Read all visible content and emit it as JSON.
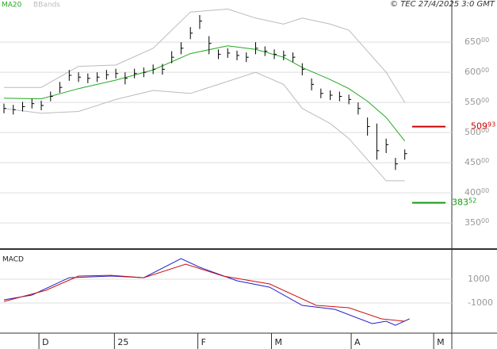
{
  "header": "© TEC 27/4/2025 3:0 GMT",
  "chart_data": [
    {
      "type": "hlc",
      "xlim": [
        -0.85,
        96.09
      ],
      "ylim": [
        308,
        720
      ],
      "xticks": [
        {
          "value": 7.5,
          "label": "D"
        },
        {
          "value": 23.7,
          "label": "25"
        },
        {
          "value": 41.6,
          "label": "F"
        },
        {
          "value": 57.4,
          "label": "M"
        },
        {
          "value": 74.5,
          "label": "A"
        },
        {
          "value": 92.2,
          "label": "M"
        }
      ],
      "yticks": [
        {
          "value": 350,
          "label": "350",
          "decimals": "00"
        },
        {
          "value": 400,
          "label": "400",
          "decimals": "00"
        },
        {
          "value": 450,
          "label": "450",
          "decimals": "00"
        },
        {
          "value": 500,
          "label": "500",
          "decimals": "00"
        },
        {
          "value": 550,
          "label": "550",
          "decimals": "00"
        },
        {
          "value": 600,
          "label": "600",
          "decimals": "00"
        },
        {
          "value": 650,
          "label": "650",
          "decimals": "00"
        }
      ],
      "grid": true,
      "bars": {
        "color": "#000000",
        "x": [
          0,
          2,
          4,
          6,
          8,
          10,
          12,
          14,
          16,
          18,
          20,
          22,
          24,
          26,
          28,
          30,
          32,
          34,
          36,
          38,
          40,
          42,
          44,
          46,
          48,
          50,
          52,
          54,
          56,
          58,
          60,
          62,
          64,
          66,
          68,
          70,
          72,
          74,
          76,
          78,
          80,
          82,
          84,
          86
        ],
        "high": [
          548,
          546,
          551,
          556,
          553,
          568,
          584,
          604,
          600,
          598,
          600,
          604,
          606,
          600,
          606,
          608,
          613,
          614,
          635,
          650,
          675,
          695,
          660,
          638,
          640,
          636,
          633,
          650,
          643,
          638,
          636,
          633,
          615,
          590,
          573,
          570,
          568,
          563,
          550,
          525,
          515,
          490,
          458,
          472
        ],
        "low": [
          532,
          530,
          535,
          540,
          537,
          552,
          566,
          586,
          584,
          582,
          584,
          588,
          590,
          580,
          590,
          592,
          597,
          596,
          615,
          630,
          655,
          672,
          630,
          622,
          624,
          620,
          617,
          630,
          627,
          622,
          620,
          617,
          595,
          570,
          557,
          554,
          552,
          547,
          530,
          495,
          455,
          466,
          438,
          455
        ],
        "close": [
          540,
          538,
          543,
          548,
          545,
          560,
          575,
          595,
          592,
          590,
          592,
          596,
          598,
          590,
          598,
          600,
          605,
          605,
          625,
          640,
          665,
          685,
          648,
          630,
          632,
          628,
          625,
          640,
          635,
          630,
          628,
          625,
          605,
          580,
          565,
          562,
          560,
          555,
          540,
          510,
          470,
          480,
          448,
          465
        ]
      },
      "series": [
        {
          "name": "MA20",
          "color": "#22aa22",
          "x": [
            0,
            8,
            16,
            24,
            32,
            40,
            48,
            54,
            60,
            64,
            70,
            74,
            78,
            82,
            86
          ],
          "values": [
            557,
            556,
            573,
            587,
            604,
            631,
            644,
            638,
            625,
            608,
            588,
            573,
            552,
            525,
            486
          ]
        }
      ],
      "bands": {
        "name": "BBands",
        "color": "#bbbbbb",
        "x": [
          0,
          8,
          16,
          24,
          32,
          40,
          48,
          54,
          60,
          64,
          70,
          74,
          78,
          82,
          86
        ],
        "upper": [
          575,
          575,
          610,
          612,
          640,
          700,
          705,
          690,
          680,
          690,
          680,
          670,
          635,
          600,
          550
        ],
        "lower": [
          540,
          532,
          535,
          555,
          570,
          565,
          585,
          600,
          580,
          540,
          515,
          490,
          455,
          420,
          420
        ]
      },
      "levels": [
        {
          "value": 509.93,
          "label": "509",
          "decimals": "93",
          "color": "#cc0000"
        },
        {
          "value": 383.52,
          "label": "383",
          "decimals": "52",
          "color": "#119911"
        }
      ]
    },
    {
      "type": "line",
      "title": "MACD",
      "ylim": [
        -3530,
        3400
      ],
      "yticks": [
        -1000,
        1000
      ],
      "series": [
        {
          "color": "#2222cc",
          "x": [
            0,
            6,
            14,
            23,
            30,
            38,
            42,
            50,
            57,
            64,
            71,
            79,
            82,
            84,
            87
          ],
          "values": [
            -730,
            -330,
            1130,
            1270,
            1130,
            2730,
            2000,
            870,
            330,
            -1200,
            -1530,
            -2730,
            -2530,
            -2870,
            -2330
          ]
        },
        {
          "color": "#cc1111",
          "x": [
            0,
            9,
            16,
            23,
            30,
            39,
            47,
            57,
            67,
            74,
            81,
            86
          ],
          "values": [
            -870,
            70,
            1270,
            1330,
            1130,
            2270,
            1270,
            600,
            -1200,
            -1400,
            -2330,
            -2530
          ]
        }
      ]
    }
  ]
}
